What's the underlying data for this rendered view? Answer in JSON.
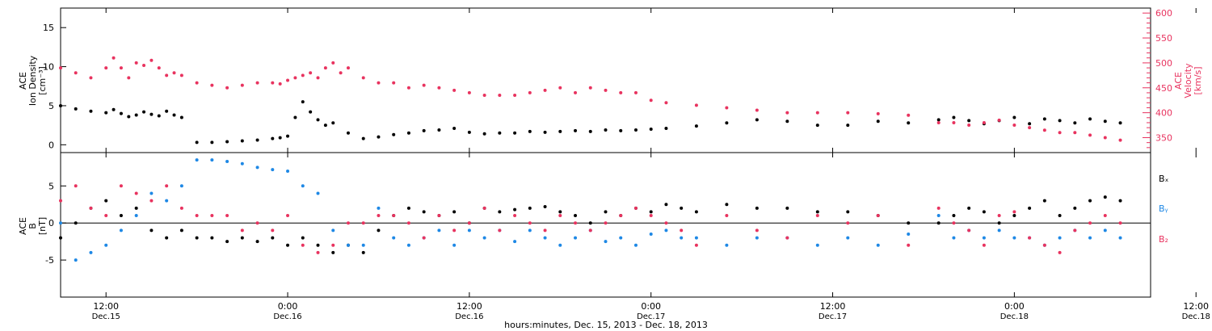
{
  "chart_data": [
    {
      "type": "scatter",
      "panel": "plasma",
      "ylabel": [
        "ACE",
        "Ion Density",
        "[cm⁻³]"
      ],
      "y2label": [
        "ACE",
        "Velocity",
        "[km/s]"
      ],
      "ylim": [
        -1,
        17.5
      ],
      "y2lim": [
        320,
        610
      ],
      "yticks": [
        0,
        5,
        10,
        15
      ],
      "y2ticks": [
        350,
        400,
        450,
        500,
        550,
        600
      ],
      "colors": {
        "density": "#000000",
        "velocity": "#e8335f"
      },
      "series": [
        {
          "name": "Ion Density",
          "axis": "left",
          "color": "#000000",
          "x": [
            6,
            8,
            10,
            12,
            13,
            14,
            15,
            16,
            17,
            18,
            19,
            20,
            21,
            22,
            24,
            26,
            28,
            30,
            32,
            34,
            35,
            36,
            37,
            38,
            39,
            40,
            41,
            42,
            44,
            46,
            48,
            50,
            52,
            54,
            56,
            58,
            60,
            62,
            64,
            66,
            68,
            70,
            72,
            74,
            76,
            78,
            80,
            82,
            84,
            86,
            90,
            94,
            98,
            102,
            106,
            110,
            114,
            118,
            122,
            124,
            126,
            128,
            130,
            132,
            134,
            136,
            138,
            140,
            142,
            144,
            146
          ],
          "values": [
            5,
            4.6,
            4.3,
            4.1,
            4.5,
            4,
            3.6,
            3.8,
            4.2,
            3.9,
            3.7,
            4.3,
            3.8,
            3.5,
            0.3,
            0.3,
            0.4,
            0.5,
            0.6,
            0.8,
            0.9,
            1.1,
            3.5,
            5.5,
            4.2,
            3.2,
            2.5,
            2.8,
            1.5,
            0.8,
            1,
            1.3,
            1.5,
            1.8,
            1.9,
            2.1,
            1.6,
            1.4,
            1.5,
            1.5,
            1.7,
            1.6,
            1.7,
            1.8,
            1.7,
            1.9,
            1.8,
            1.9,
            2,
            2.1,
            2.4,
            2.8,
            3.2,
            3,
            2.5,
            2.5,
            3,
            2.8,
            3.2,
            3.5,
            3.1,
            2.7,
            3.1,
            3.5,
            2.7,
            3.3,
            3.1,
            2.8,
            3.3,
            3,
            2.8
          ]
        },
        {
          "name": "Velocity",
          "axis": "right",
          "color": "#e8335f",
          "x": [
            6,
            8,
            10,
            12,
            13,
            14,
            15,
            16,
            17,
            18,
            19,
            20,
            21,
            22,
            24,
            26,
            28,
            30,
            32,
            34,
            35,
            36,
            37,
            38,
            39,
            40,
            41,
            42,
            43,
            44,
            46,
            48,
            50,
            52,
            54,
            56,
            58,
            60,
            62,
            64,
            66,
            68,
            70,
            72,
            74,
            76,
            78,
            80,
            82,
            84,
            86,
            90,
            94,
            98,
            102,
            106,
            110,
            114,
            118,
            122,
            124,
            126,
            128,
            130,
            132,
            134,
            136,
            138,
            140,
            142,
            144,
            146
          ],
          "values": [
            490,
            480,
            470,
            490,
            510,
            490,
            470,
            500,
            495,
            505,
            490,
            475,
            480,
            475,
            460,
            455,
            450,
            455,
            460,
            460,
            458,
            465,
            470,
            475,
            480,
            470,
            490,
            500,
            480,
            490,
            470,
            460,
            460,
            450,
            455,
            450,
            445,
            440,
            435,
            435,
            435,
            440,
            445,
            450,
            440,
            450,
            445,
            440,
            440,
            425,
            420,
            415,
            410,
            405,
            400,
            400,
            400,
            398,
            395,
            380,
            380,
            375,
            380,
            385,
            375,
            370,
            365,
            360,
            360,
            355,
            350,
            345
          ]
        }
      ]
    },
    {
      "type": "scatter",
      "panel": "magnetic",
      "ylabel": [
        "ACE",
        "B",
        "[nT]"
      ],
      "ylim": [
        -10,
        9.5
      ],
      "yticks": [
        -5,
        0,
        5
      ],
      "zero_line": true,
      "legend": [
        "Bₓ",
        "Bᵧ",
        "B₂"
      ],
      "colors": {
        "Bx": "#000000",
        "By": "#1e88e5",
        "Bz": "#e8335f"
      },
      "series": [
        {
          "name": "Bx",
          "color": "#000000",
          "x": [
            6,
            8,
            10,
            12,
            14,
            16,
            18,
            20,
            22,
            24,
            26,
            28,
            30,
            32,
            34,
            36,
            38,
            40,
            42,
            44,
            46,
            48,
            50,
            52,
            54,
            56,
            58,
            60,
            62,
            64,
            66,
            68,
            70,
            72,
            74,
            76,
            78,
            80,
            82,
            84,
            86,
            88,
            90,
            94,
            98,
            102,
            106,
            110,
            114,
            118,
            122,
            124,
            126,
            128,
            130,
            132,
            134,
            136,
            138,
            140,
            142,
            144,
            146
          ],
          "values": [
            -2,
            0,
            2,
            3,
            1,
            2,
            -1,
            -2,
            -1,
            -2,
            -2,
            -2.5,
            -2,
            -2.5,
            -2,
            -3,
            -2,
            -3,
            -4,
            -3,
            -4,
            -1,
            1,
            2,
            1.5,
            1,
            1.5,
            0,
            2,
            1.5,
            1.8,
            2,
            2.2,
            1.5,
            1,
            0,
            1.5,
            1,
            2,
            1.5,
            2.5,
            2,
            1.5,
            2.5,
            2,
            2,
            1.5,
            1.5,
            1,
            0,
            0,
            1,
            2,
            1.5,
            0,
            1,
            2,
            3,
            1,
            2,
            3,
            3.5,
            3
          ]
        },
        {
          "name": "By",
          "color": "#1e88e5",
          "x": [
            6,
            8,
            10,
            12,
            14,
            16,
            18,
            20,
            22,
            24,
            26,
            28,
            30,
            32,
            34,
            36,
            38,
            40,
            42,
            44,
            46,
            48,
            50,
            52,
            54,
            56,
            58,
            60,
            62,
            64,
            66,
            68,
            70,
            72,
            74,
            76,
            78,
            80,
            82,
            84,
            86,
            88,
            90,
            94,
            98,
            102,
            106,
            110,
            114,
            118,
            122,
            124,
            126,
            128,
            130,
            132,
            134,
            136,
            138,
            140,
            142,
            144,
            146
          ],
          "values": [
            0,
            -5,
            -4,
            -3,
            -1,
            1,
            4,
            3,
            5,
            8.5,
            8.5,
            8.3,
            8,
            7.5,
            7.2,
            7,
            5,
            4,
            -1,
            -3,
            -3,
            2,
            -2,
            -3,
            -2,
            -1,
            -3,
            -1,
            -2,
            -1,
            -2.5,
            -1,
            -2,
            -3,
            -2,
            -1,
            -2.5,
            -2,
            -3,
            -1.5,
            -1,
            -2,
            -2,
            -3,
            -2,
            -2,
            -3,
            -2,
            -3,
            -1.5,
            1,
            -2,
            -1,
            -2,
            -1,
            -2,
            -2,
            -3,
            -2,
            -1,
            -2,
            -1,
            -2
          ]
        },
        {
          "name": "Bz",
          "color": "#e8335f",
          "x": [
            6,
            8,
            10,
            12,
            14,
            16,
            18,
            20,
            22,
            24,
            26,
            28,
            30,
            32,
            34,
            36,
            38,
            40,
            42,
            44,
            46,
            48,
            50,
            52,
            54,
            56,
            58,
            60,
            62,
            64,
            66,
            68,
            70,
            72,
            74,
            76,
            78,
            80,
            82,
            84,
            86,
            88,
            90,
            94,
            98,
            102,
            106,
            110,
            114,
            118,
            122,
            124,
            126,
            128,
            130,
            132,
            134,
            136,
            138,
            140,
            142,
            144,
            146
          ],
          "values": [
            3,
            5,
            2,
            1,
            5,
            4,
            3,
            5,
            2,
            1,
            1,
            1,
            -1,
            0,
            -1,
            1,
            -3,
            -4,
            -3,
            0,
            0,
            1,
            1,
            0,
            -2,
            1,
            -1,
            0,
            2,
            -1,
            1,
            0,
            -1,
            1,
            0,
            -1,
            0,
            1,
            2,
            1,
            0,
            -1,
            -3,
            1,
            -1,
            -2,
            1,
            0,
            1,
            -3,
            2,
            0,
            -1,
            -3,
            1,
            1.5,
            -2,
            -3,
            -4,
            -1,
            0,
            1,
            0
          ]
        }
      ]
    }
  ],
  "x_axis": {
    "range_hours": [
      6,
      150
    ],
    "ticks": [
      {
        "hour": 12,
        "time": "12:00",
        "date": "Dec.15"
      },
      {
        "hour": 36,
        "time": "0:00",
        "date": "Dec.16"
      },
      {
        "hour": 60,
        "time": "12:00",
        "date": "Dec.16"
      },
      {
        "hour": 84,
        "time": "0:00",
        "date": "Dec.17"
      },
      {
        "hour": 108,
        "time": "12:00",
        "date": "Dec.17"
      },
      {
        "hour": 132,
        "time": "0:00",
        "date": "Dec.18"
      },
      {
        "hour": 156,
        "time": "12:00",
        "date": "Dec.18"
      }
    ],
    "xlabel": "hours:minutes, Dec. 15, 2013 - Dec. 18, 2013"
  }
}
